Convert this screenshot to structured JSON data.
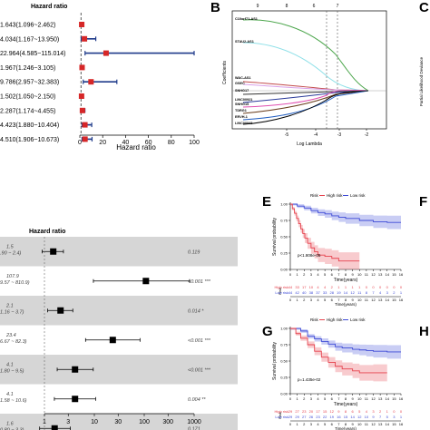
{
  "panel_letters": {
    "B": "B",
    "C": "C",
    "E": "E",
    "F": "F",
    "G": "G",
    "H": "H"
  },
  "panel_a": {
    "header": "Hazard ratio",
    "xlabel": "Hazard ratio",
    "ticks": [
      "0",
      "20",
      "40",
      "60",
      "80",
      "100"
    ],
    "rows": [
      {
        "label": "1.643(1.096~2.462)",
        "hr": 1.643,
        "lo": 1.096,
        "hi": 2.462
      },
      {
        "label": "4.034(1.167~13.950)",
        "hr": 4.034,
        "lo": 1.167,
        "hi": 13.95
      },
      {
        "label": "22.964(4.585~115.014)",
        "hr": 22.964,
        "lo": 4.585,
        "hi": 115.014
      },
      {
        "label": "1.967(1.246~3.105)",
        "hr": 1.967,
        "lo": 1.246,
        "hi": 3.105
      },
      {
        "label": "9.786(2.957~32.383)",
        "hr": 9.786,
        "lo": 2.957,
        "hi": 32.383
      },
      {
        "label": "1.502(1.050~2.150)",
        "hr": 1.502,
        "lo": 1.05,
        "hi": 2.15
      },
      {
        "label": "2.287(1.174~4.455)",
        "hr": 2.287,
        "lo": 1.174,
        "hi": 4.455
      },
      {
        "label": "4.423(1.880~10.404)",
        "hr": 4.423,
        "lo": 1.88,
        "hi": 10.404
      },
      {
        "label": "4.510(1.906~10.673)",
        "hr": 4.51,
        "lo": 1.906,
        "hi": 10.673
      }
    ]
  },
  "panel_b": {
    "top_ticks": [
      "9",
      "8",
      "6",
      "7"
    ],
    "x_ticks": [
      "-5",
      "-4",
      "-3",
      "-2"
    ],
    "xlabel": "Log Lambda",
    "ylabel": "Coefficients",
    "genes": [
      "C10orf71-AS1",
      "STAU2-AS1",
      "WAC-AS1",
      "GSEC",
      "SNHG17",
      "LINC00921",
      "SNHG15",
      "TDRG1",
      "ERVH-1",
      "LINC00943"
    ]
  },
  "panel_c": {
    "ylabel": "Partial Likelihood Deviance"
  },
  "panel_d": {
    "header": "Hazard ratio",
    "ticks": [
      "1",
      "3",
      "10",
      "30",
      "100",
      "300",
      "1000"
    ],
    "rows": [
      {
        "left_top": "1.5",
        "left_bottom": ".90 ~ 2.4)",
        "hr": 1.5,
        "lo": 0.9,
        "hi": 2.4,
        "p": "0.119"
      },
      {
        "left_top": "107.9",
        "left_bottom": "9.57 ~ 810.9)",
        "hr": 107.9,
        "lo": 9.57,
        "hi": 810.9,
        "p": "<0.001 ***"
      },
      {
        "left_top": "2.1",
        "left_bottom": "1.16 ~ 3.7)",
        "hr": 2.1,
        "lo": 1.16,
        "hi": 3.7,
        "p": "0.014 *"
      },
      {
        "left_top": "23.4",
        "left_bottom": "6.67 ~ 82.3)",
        "hr": 23.4,
        "lo": 6.67,
        "hi": 82.3,
        "p": "<0.001 ***"
      },
      {
        "left_top": "4.1",
        "left_bottom": "1.80 ~ 9.5)",
        "hr": 4.1,
        "lo": 1.8,
        "hi": 9.5,
        "p": "<0.001 ***"
      },
      {
        "left_top": "4.1",
        "left_bottom": "1.58 ~ 10.6)",
        "hr": 4.1,
        "lo": 1.58,
        "hi": 10.6,
        "p": "0.004 **"
      },
      {
        "left_top": "1.6",
        "left_bottom": "0.80 ~ 3.3)",
        "hr": 1.6,
        "lo": 0.8,
        "hi": 3.3,
        "p": "0.171"
      }
    ]
  },
  "panel_e": {
    "legend_title": "Risk",
    "legend_high": "High risk",
    "legend_low": "Low risk",
    "ylabel": "Survival probability",
    "xlabel": "Time(years)",
    "pvalue": "p<1.808e-05",
    "risk_title": "Risk",
    "y_ticks": [
      "0.00",
      "0.25",
      "0.50",
      "0.75",
      "1.00"
    ],
    "x_ticks": [
      "0",
      "1",
      "2",
      "3",
      "4",
      "5",
      "6",
      "7",
      "8",
      "9",
      "10",
      "11",
      "12",
      "13",
      "14",
      "15",
      "16"
    ],
    "high_label": "High risk",
    "low_label": "Low risk",
    "high_counts": [
      "44",
      "33",
      "17",
      "10",
      "4",
      "4",
      "2",
      "1",
      "1",
      "1",
      "1",
      "0",
      "0",
      "0",
      "0",
      "0",
      "0"
    ],
    "low_counts": [
      "44",
      "42",
      "40",
      "38",
      "37",
      "33",
      "28",
      "19",
      "14",
      "12",
      "11",
      "8",
      "7",
      "4",
      "3",
      "2",
      "1"
    ],
    "high_curve": {
      "x": [
        0,
        0.3,
        0.6,
        0.9,
        1.2,
        1.5,
        1.8,
        2.1,
        2.5,
        3,
        3.5,
        4,
        5,
        6,
        7,
        10
      ],
      "y": [
        1,
        0.93,
        0.86,
        0.78,
        0.7,
        0.62,
        0.55,
        0.48,
        0.4,
        0.33,
        0.27,
        0.22,
        0.2,
        0.17,
        0.13,
        0.13
      ]
    },
    "low_curve": {
      "x": [
        0,
        1,
        2,
        3,
        4,
        5,
        6,
        7,
        8,
        10,
        12,
        14,
        16
      ],
      "y": [
        1,
        0.97,
        0.94,
        0.9,
        0.87,
        0.85,
        0.82,
        0.8,
        0.78,
        0.75,
        0.73,
        0.72,
        0.72
      ]
    }
  },
  "panel_g": {
    "legend_title": "Risk",
    "legend_high": "High risk",
    "legend_low": "Low risk",
    "ylabel": "Survival probability",
    "xlabel": "Time(years)",
    "pvalue": "p=1.435e-02",
    "risk_title": "Risk",
    "y_ticks": [
      "0.00",
      "0.25",
      "0.50",
      "0.75",
      "1.00"
    ],
    "x_ticks": [
      "0",
      "1",
      "2",
      "3",
      "4",
      "5",
      "6",
      "7",
      "8",
      "9",
      "10",
      "11",
      "12",
      "13",
      "14",
      "15",
      "16"
    ],
    "high_label": "High risk",
    "low_label": "Low risk",
    "high_counts": [
      "29",
      "27",
      "23",
      "20",
      "17",
      "15",
      "12",
      "9",
      "8",
      "6",
      "5",
      "4",
      "3",
      "2",
      "1",
      "0",
      "0"
    ],
    "low_counts": [
      "29",
      "29",
      "27",
      "26",
      "23",
      "22",
      "19",
      "16",
      "15",
      "14",
      "12",
      "10",
      "9",
      "7",
      "5",
      "3",
      "1"
    ],
    "high_curve": {
      "x": [
        0,
        0.8,
        1.5,
        2.5,
        3.5,
        4.5,
        5.5,
        6.5,
        7.5,
        9,
        10,
        12,
        14
      ],
      "y": [
        1,
        0.92,
        0.85,
        0.75,
        0.65,
        0.56,
        0.48,
        0.42,
        0.38,
        0.35,
        0.32,
        0.32,
        0.32
      ]
    },
    "low_curve": {
      "x": [
        0,
        1.5,
        2.5,
        3.5,
        4.5,
        5.5,
        6.5,
        7.5,
        9,
        10,
        11,
        12,
        14,
        16
      ],
      "y": [
        1,
        0.96,
        0.88,
        0.84,
        0.8,
        0.76,
        0.72,
        0.7,
        0.68,
        0.67,
        0.66,
        0.65,
        0.64,
        0.64
      ]
    }
  }
}
